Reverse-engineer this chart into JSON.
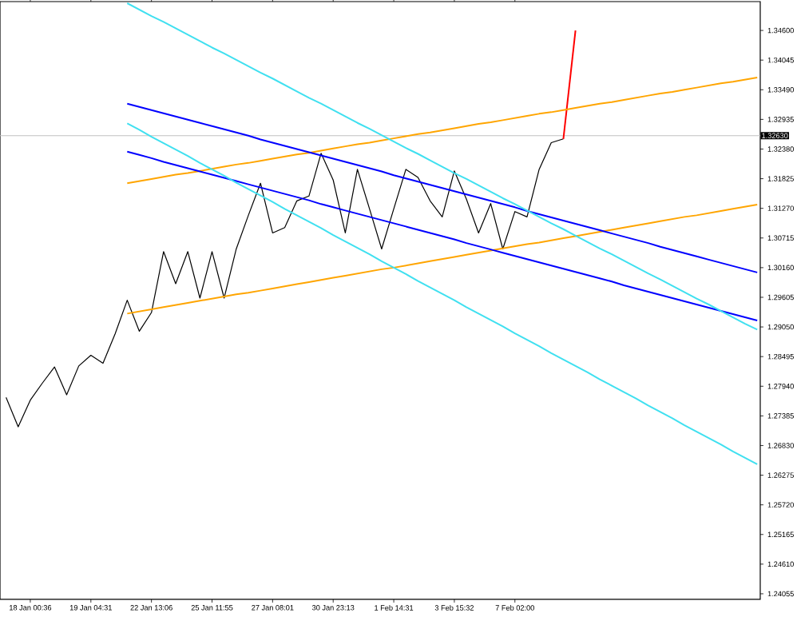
{
  "chart_data": {
    "type": "line",
    "ylim": [
      1.2395,
      1.3514
    ],
    "categories": [
      null,
      null,
      "18 Jan 00:36",
      null,
      null,
      null,
      null,
      "19 Jan 04:31",
      null,
      null,
      null,
      null,
      "22 Jan 13:06",
      null,
      null,
      null,
      null,
      "25 Jan 11:55",
      null,
      null,
      null,
      null,
      "27 Jan 08:01",
      null,
      null,
      null,
      null,
      "30 Jan 23:13",
      null,
      null,
      null,
      null,
      "1 Feb 14:31",
      null,
      null,
      null,
      null,
      "3 Feb 15:32",
      null,
      null,
      null,
      null,
      "7 Feb 02:00",
      null,
      null,
      null,
      null,
      null,
      null,
      null,
      null,
      null,
      null,
      null,
      null,
      null,
      null,
      null,
      null,
      null,
      null,
      null,
      null
    ],
    "yticks": [
      {
        "value": 1.346,
        "label": "1.34600"
      },
      {
        "value": 1.34045,
        "label": "1.34045"
      },
      {
        "value": 1.3349,
        "label": "1.33490"
      },
      {
        "value": 1.32935,
        "label": "1.32935"
      },
      {
        "value": 1.3238,
        "label": "1.32380"
      },
      {
        "value": 1.31825,
        "label": "1.31825"
      },
      {
        "value": 1.3127,
        "label": "1.31270"
      },
      {
        "value": 1.30715,
        "label": "1.30715"
      },
      {
        "value": 1.3016,
        "label": "1.30160"
      },
      {
        "value": 1.29605,
        "label": "1.29605"
      },
      {
        "value": 1.2905,
        "label": "1.29050"
      },
      {
        "value": 1.28495,
        "label": "1.28495"
      },
      {
        "value": 1.2794,
        "label": "1.27940"
      },
      {
        "value": 1.27385,
        "label": "1.27385"
      },
      {
        "value": 1.2683,
        "label": "1.26830"
      },
      {
        "value": 1.26275,
        "label": "1.26275"
      },
      {
        "value": 1.2572,
        "label": "1.25720"
      },
      {
        "value": 1.25165,
        "label": "1.25165"
      },
      {
        "value": 1.2461,
        "label": "1.24610"
      },
      {
        "value": 1.24055,
        "label": "1.24055"
      }
    ],
    "marker": "none",
    "line_style": "solid",
    "ref_lines": [
      {
        "axis": "y",
        "value": 1.3263,
        "label": "1.32630",
        "color": "#c0c0c0"
      }
    ],
    "series": [
      {
        "color": "#000000",
        "values": [
          1.2773,
          1.2718,
          1.2768,
          1.28,
          1.283,
          1.2778,
          1.2832,
          1.2852,
          1.2837,
          1.2892,
          1.2955,
          1.2897,
          1.2932,
          1.3046,
          1.2986,
          1.3046,
          1.2959,
          1.3046,
          1.2959,
          1.3051,
          1.3114,
          1.3174,
          1.3081,
          1.3091,
          1.3141,
          1.315,
          1.323,
          1.318,
          1.3081,
          1.32,
          1.3126,
          1.3051,
          1.3126,
          1.32,
          1.3185,
          1.3141,
          1.3111,
          1.3197,
          1.3144,
          1.3081,
          1.3136,
          1.3051,
          1.3121,
          1.3111,
          1.32,
          1.325,
          1.3257,
          null,
          null,
          null,
          null,
          null,
          null,
          null,
          null,
          null,
          null,
          null,
          null,
          null,
          null,
          null,
          null
        ]
      },
      {
        "color": "#ff0000",
        "values": [
          null,
          null,
          null,
          null,
          null,
          null,
          null,
          null,
          null,
          null,
          null,
          null,
          null,
          null,
          null,
          null,
          null,
          null,
          null,
          null,
          null,
          null,
          null,
          null,
          null,
          null,
          null,
          null,
          null,
          null,
          null,
          null,
          null,
          null,
          null,
          null,
          null,
          null,
          null,
          null,
          null,
          null,
          null,
          null,
          null,
          null,
          1.3257,
          1.346,
          null,
          null,
          null,
          null,
          null,
          null,
          null,
          null,
          null,
          null,
          null,
          null,
          null,
          null,
          null
        ]
      },
      {
        "color": "#ffa500",
        "values": [
          null,
          null,
          null,
          null,
          null,
          null,
          null,
          null,
          null,
          null,
          1.3174,
          1.3178,
          1.3182,
          1.3186,
          1.319,
          1.3193,
          1.3197,
          1.3201,
          1.3205,
          1.3209,
          1.3212,
          1.3216,
          1.322,
          1.3224,
          1.3228,
          1.3231,
          1.3235,
          1.3239,
          1.3243,
          1.3247,
          1.325,
          1.3254,
          1.3258,
          1.3262,
          1.3266,
          1.3269,
          1.3273,
          1.3277,
          1.3281,
          1.3285,
          1.3288,
          1.3292,
          1.3296,
          1.33,
          1.3304,
          1.3307,
          1.3311,
          1.3315,
          1.3319,
          1.3323,
          1.3326,
          1.333,
          1.3334,
          1.3338,
          1.3342,
          1.3345,
          1.3349,
          1.3353,
          1.3357,
          1.3361,
          1.3364,
          1.3368,
          1.3372
        ]
      },
      {
        "color": "#ffa500",
        "values": [
          null,
          null,
          null,
          null,
          null,
          null,
          null,
          null,
          null,
          null,
          1.293,
          1.2934,
          1.2938,
          1.2942,
          1.2946,
          1.295,
          1.2954,
          1.2958,
          1.2962,
          1.2966,
          1.2969,
          1.2973,
          1.2977,
          1.2981,
          1.2985,
          1.2989,
          1.2993,
          1.2997,
          1.3001,
          1.3005,
          1.3009,
          1.3013,
          1.3016,
          1.302,
          1.3024,
          1.3028,
          1.3032,
          1.3036,
          1.304,
          1.3044,
          1.3048,
          1.3052,
          1.3056,
          1.306,
          1.3063,
          1.3067,
          1.3071,
          1.3075,
          1.3079,
          1.3083,
          1.3087,
          1.3091,
          1.3095,
          1.3099,
          1.3103,
          1.3107,
          1.3111,
          1.3114,
          1.3118,
          1.3122,
          1.3126,
          1.313,
          1.3134
        ]
      },
      {
        "color": "#0000ff",
        "values": [
          null,
          null,
          null,
          null,
          null,
          null,
          null,
          null,
          null,
          null,
          1.3323,
          1.3317,
          1.3311,
          1.3305,
          1.3299,
          1.3293,
          1.3287,
          1.3281,
          1.3275,
          1.3269,
          1.3263,
          1.3256,
          1.325,
          1.3244,
          1.3238,
          1.3232,
          1.3226,
          1.322,
          1.3214,
          1.3208,
          1.3202,
          1.3196,
          1.3189,
          1.3183,
          1.3177,
          1.3171,
          1.3165,
          1.3159,
          1.3153,
          1.3147,
          1.3141,
          1.3135,
          1.3129,
          1.3122,
          1.3116,
          1.311,
          1.3104,
          1.3098,
          1.3092,
          1.3086,
          1.308,
          1.3074,
          1.3068,
          1.3062,
          1.3055,
          1.3049,
          1.3043,
          1.3037,
          1.3031,
          1.3025,
          1.3019,
          1.3013,
          1.3007
        ]
      },
      {
        "color": "#0000ff",
        "values": [
          null,
          null,
          null,
          null,
          null,
          null,
          null,
          null,
          null,
          null,
          1.3233,
          1.3227,
          1.3221,
          1.3214,
          1.3208,
          1.3202,
          1.3196,
          1.319,
          1.3184,
          1.3178,
          1.3172,
          1.3166,
          1.316,
          1.3154,
          1.3148,
          1.3142,
          1.3135,
          1.3129,
          1.3123,
          1.3117,
          1.3111,
          1.3105,
          1.3099,
          1.3093,
          1.3087,
          1.3081,
          1.3075,
          1.3069,
          1.3062,
          1.3056,
          1.305,
          1.3044,
          1.3038,
          1.3032,
          1.3026,
          1.302,
          1.3014,
          1.3008,
          1.3002,
          1.2996,
          1.299,
          1.2983,
          1.2977,
          1.2971,
          1.2965,
          1.2959,
          1.2953,
          1.2947,
          1.2941,
          1.2935,
          1.2929,
          1.2923,
          1.2917
        ]
      },
      {
        "color": "#40e0f0",
        "values": [
          null,
          null,
          null,
          null,
          null,
          null,
          null,
          null,
          null,
          null,
          1.3511,
          1.3499,
          1.3487,
          1.3476,
          1.3464,
          1.3452,
          1.344,
          1.3428,
          1.3417,
          1.3405,
          1.3393,
          1.3381,
          1.337,
          1.3358,
          1.3346,
          1.3334,
          1.3323,
          1.3311,
          1.3299,
          1.3287,
          1.3276,
          1.3264,
          1.3252,
          1.324,
          1.3229,
          1.3217,
          1.3205,
          1.3193,
          1.3182,
          1.317,
          1.3158,
          1.3146,
          1.3135,
          1.3123,
          1.3111,
          1.3099,
          1.3088,
          1.3076,
          1.3064,
          1.3052,
          1.3041,
          1.3029,
          1.3017,
          1.3005,
          1.2994,
          1.2982,
          1.297,
          1.2958,
          1.2947,
          1.2935,
          1.2923,
          1.2911,
          1.29
        ]
      },
      {
        "color": "#40e0f0",
        "values": [
          null,
          null,
          null,
          null,
          null,
          null,
          null,
          null,
          null,
          null,
          1.3286,
          1.3274,
          1.3261,
          1.3249,
          1.3237,
          1.3225,
          1.3212,
          1.32,
          1.3188,
          1.3175,
          1.3163,
          1.3151,
          1.3139,
          1.3126,
          1.3114,
          1.3102,
          1.309,
          1.3077,
          1.3065,
          1.3053,
          1.3041,
          1.3028,
          1.3016,
          1.3004,
          1.2991,
          1.2979,
          1.2967,
          1.2955,
          1.2942,
          1.293,
          1.2918,
          1.2906,
          1.2893,
          1.2881,
          1.2869,
          1.2856,
          1.2844,
          1.2832,
          1.282,
          1.2807,
          1.2795,
          1.2783,
          1.2771,
          1.2758,
          1.2746,
          1.2734,
          1.2721,
          1.2709,
          1.2697,
          1.2685,
          1.2672,
          1.266,
          1.2648
        ]
      }
    ]
  }
}
